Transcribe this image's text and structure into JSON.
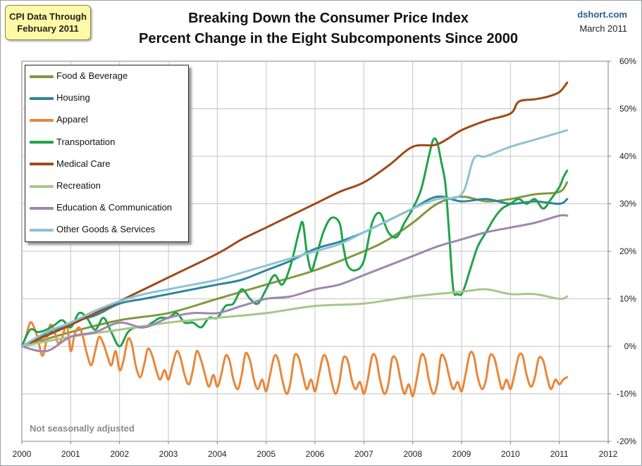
{
  "badge": {
    "line1": "CPI Data Through",
    "line2": "February 2011"
  },
  "header": {
    "title_line1": "Breaking Down the Consumer Price Index",
    "title_line2": "Percent Change in the Eight Subcomponents Since 2000"
  },
  "source": {
    "site": "dshort.com",
    "date": "March 2011"
  },
  "note": "Not seasonally adjusted",
  "chart_data": {
    "type": "line",
    "title": "Breaking Down the Consumer Price Index - Percent Change in the Eight Subcomponents Since 2000",
    "xlabel": "",
    "ylabel": "",
    "xlim": [
      2000,
      2012
    ],
    "ylim": [
      -20,
      60
    ],
    "x_ticks": [
      "2000",
      "2001",
      "2002",
      "2003",
      "2004",
      "2005",
      "2006",
      "2007",
      "2008",
      "2009",
      "2010",
      "2011",
      "2012"
    ],
    "y_ticks": [
      "60%",
      "50%",
      "40%",
      "30%",
      "20%",
      "10%",
      "0%",
      "-10%",
      "-20%"
    ],
    "y_axis_side": "right",
    "grid": true,
    "legend_position": "top-left",
    "series": [
      {
        "name": "Food & Beverage",
        "color": "#7f9a40",
        "x": [
          2000,
          2001,
          2002,
          2003,
          2004,
          2005,
          2006,
          2007,
          2007.5,
          2008,
          2008.5,
          2009,
          2009.5,
          2010,
          2010.5,
          2011,
          2011.16
        ],
        "y": [
          0,
          3,
          5.5,
          7,
          10,
          13,
          16,
          20,
          22.5,
          26,
          30,
          31.5,
          30.5,
          31,
          32,
          32.5,
          34.5
        ]
      },
      {
        "name": "Housing",
        "color": "#31849b",
        "x": [
          2000,
          2000.5,
          2001,
          2001.5,
          2002,
          2002.5,
          2003,
          2003.5,
          2004,
          2004.5,
          2005,
          2005.5,
          2006,
          2006.5,
          2007,
          2007.5,
          2008,
          2008.5,
          2009,
          2009.5,
          2010,
          2010.5,
          2011,
          2011.16
        ],
        "y": [
          0,
          2.5,
          5,
          6.5,
          9,
          10,
          11,
          12,
          13,
          14,
          16,
          18,
          20.5,
          22,
          24,
          26.5,
          29,
          31.5,
          30.5,
          31,
          30,
          30.5,
          30,
          31
        ]
      },
      {
        "name": "Apparel",
        "color": "#e8873a",
        "x": [
          2000,
          2000.08,
          2000.17,
          2000.25,
          2000.33,
          2000.42,
          2000.5,
          2000.58,
          2000.67,
          2000.75,
          2000.83,
          2000.92,
          2001,
          2001.08,
          2001.17,
          2001.25,
          2001.33,
          2001.42,
          2001.5,
          2001.58,
          2001.67,
          2001.75,
          2001.83,
          2001.92,
          2002,
          2002.08,
          2002.17,
          2002.25,
          2002.33,
          2002.42,
          2002.5,
          2002.58,
          2002.67,
          2002.75,
          2002.83,
          2002.92,
          2003,
          2003.08,
          2003.17,
          2003.25,
          2003.33,
          2003.42,
          2003.5,
          2003.58,
          2003.67,
          2003.75,
          2003.83,
          2003.92,
          2004,
          2004.08,
          2004.17,
          2004.25,
          2004.33,
          2004.42,
          2004.5,
          2004.58,
          2004.67,
          2004.75,
          2004.83,
          2004.92,
          2005,
          2005.08,
          2005.17,
          2005.25,
          2005.33,
          2005.42,
          2005.5,
          2005.58,
          2005.67,
          2005.75,
          2005.83,
          2005.92,
          2006,
          2006.08,
          2006.17,
          2006.25,
          2006.33,
          2006.42,
          2006.5,
          2006.58,
          2006.67,
          2006.75,
          2006.83,
          2006.92,
          2007,
          2007.08,
          2007.17,
          2007.25,
          2007.33,
          2007.42,
          2007.5,
          2007.58,
          2007.67,
          2007.75,
          2007.83,
          2007.92,
          2008,
          2008.08,
          2008.17,
          2008.25,
          2008.33,
          2008.42,
          2008.5,
          2008.58,
          2008.67,
          2008.75,
          2008.83,
          2008.92,
          2009,
          2009.08,
          2009.17,
          2009.25,
          2009.33,
          2009.42,
          2009.5,
          2009.58,
          2009.67,
          2009.75,
          2009.83,
          2009.92,
          2010,
          2010.08,
          2010.17,
          2010.25,
          2010.33,
          2010.42,
          2010.5,
          2010.58,
          2010.67,
          2010.75,
          2010.83,
          2010.92,
          2011,
          2011.08,
          2011.16
        ],
        "y": [
          0,
          2,
          5,
          4,
          1.5,
          -2,
          1,
          4.5,
          3,
          0.5,
          2,
          4.5,
          -1,
          2.5,
          4,
          2,
          -1.5,
          -4,
          -1,
          2,
          0.5,
          -2,
          -4,
          -1,
          -5,
          -3,
          1.5,
          0.5,
          -4,
          -6.5,
          -4,
          -0.5,
          -2,
          -5,
          -7,
          -5,
          -7,
          -4,
          -1,
          -2.5,
          -6,
          -8,
          -5,
          -1,
          -3,
          -6,
          -8.5,
          -6,
          -8.5,
          -6,
          -2,
          -3,
          -7,
          -9,
          -6,
          -1.5,
          -3,
          -7,
          -9,
          -7,
          -9.5,
          -6,
          -2,
          -3,
          -7,
          -10,
          -7.5,
          -2,
          -2.5,
          -6,
          -9,
          -7,
          -9.5,
          -6,
          -2,
          -3,
          -7,
          -10,
          -7.5,
          -2.5,
          -3,
          -7,
          -9,
          -7.5,
          -10,
          -7,
          -2,
          -2.5,
          -7,
          -10,
          -8,
          -2.5,
          -3,
          -7,
          -10,
          -8,
          -10.5,
          -7,
          -2,
          -2.5,
          -7,
          -10,
          -8,
          -2,
          -3,
          -6.5,
          -9,
          -7.5,
          -9.5,
          -6,
          -1.5,
          -2,
          -6.5,
          -9,
          -7,
          -2,
          -2.5,
          -6,
          -9,
          -7,
          -9,
          -6,
          -2,
          -2,
          -6,
          -8.5,
          -6.5,
          -2.5,
          -3,
          -6.5,
          -9,
          -7,
          -8,
          -7,
          -6.5
        ]
      },
      {
        "name": "Transportation",
        "color": "#1fa34a",
        "x": [
          2000,
          2000.17,
          2000.33,
          2000.5,
          2000.67,
          2000.83,
          2001,
          2001.17,
          2001.33,
          2001.5,
          2001.67,
          2001.83,
          2002,
          2002.17,
          2002.33,
          2002.5,
          2002.67,
          2002.83,
          2003,
          2003.17,
          2003.33,
          2003.5,
          2003.67,
          2003.83,
          2004,
          2004.17,
          2004.33,
          2004.5,
          2004.67,
          2004.83,
          2005,
          2005.17,
          2005.33,
          2005.5,
          2005.67,
          2005.75,
          2005.83,
          2005.92,
          2006,
          2006.17,
          2006.33,
          2006.5,
          2006.58,
          2006.67,
          2006.83,
          2007,
          2007.17,
          2007.33,
          2007.5,
          2007.67,
          2007.83,
          2008,
          2008.17,
          2008.33,
          2008.42,
          2008.5,
          2008.58,
          2008.67,
          2008.75,
          2008.83,
          2008.92,
          2009,
          2009.08,
          2009.17,
          2009.33,
          2009.5,
          2009.67,
          2009.83,
          2010,
          2010.17,
          2010.33,
          2010.5,
          2010.67,
          2010.83,
          2011,
          2011.08,
          2011.16
        ],
        "y": [
          0,
          3.5,
          3,
          3.5,
          4.5,
          5.5,
          4,
          7,
          6,
          3.5,
          6,
          3,
          0,
          3,
          4,
          4,
          5,
          6,
          6,
          7,
          5,
          5,
          4,
          6,
          6,
          8.5,
          9,
          12,
          10,
          9,
          12,
          15,
          13,
          17,
          24,
          26,
          20,
          16,
          18,
          24,
          27,
          26,
          21,
          17,
          16,
          18,
          26,
          28,
          24,
          23,
          26,
          29,
          33,
          40,
          43.5,
          43,
          39,
          34,
          23,
          12,
          11,
          11,
          13,
          16,
          21,
          24,
          27,
          29,
          30,
          31,
          30,
          31,
          29,
          31,
          33.5,
          35.5,
          37
        ]
      },
      {
        "name": "Medical Care",
        "color": "#a04a16",
        "x": [
          2000,
          2001,
          2002,
          2003,
          2004,
          2004.5,
          2005,
          2005.5,
          2006,
          2006.5,
          2007,
          2007.5,
          2008,
          2008.5,
          2009,
          2009.5,
          2010,
          2010.17,
          2010.5,
          2010.75,
          2011,
          2011.16
        ],
        "y": [
          0,
          4.5,
          9.5,
          14.5,
          19.5,
          22.5,
          25,
          27.5,
          30,
          32.5,
          34.5,
          38,
          42,
          42.5,
          45.5,
          47.5,
          49,
          51.5,
          52,
          52.5,
          53.5,
          55.5
        ]
      },
      {
        "name": "Recreation",
        "color": "#a8c68a",
        "x": [
          2000,
          2001,
          2002,
          2003,
          2004,
          2005,
          2006,
          2007,
          2008,
          2009,
          2009.5,
          2010,
          2010.5,
          2011,
          2011.16
        ],
        "y": [
          0,
          2,
          3.5,
          5,
          6,
          7,
          8.5,
          9,
          10.5,
          11.5,
          12,
          11,
          11,
          10,
          10.5
        ]
      },
      {
        "name": "Education & Communication",
        "color": "#9e86b2",
        "x": [
          2000,
          2000.5,
          2001,
          2001.5,
          2002,
          2002.5,
          2003,
          2003.5,
          2004,
          2004.5,
          2005,
          2005.5,
          2006,
          2006.5,
          2007,
          2007.5,
          2008,
          2008.5,
          2009,
          2009.5,
          2010,
          2010.5,
          2011,
          2011.16
        ],
        "y": [
          0,
          -1,
          2,
          3,
          5,
          4,
          6,
          7,
          7,
          8.5,
          10,
          10.5,
          12,
          13,
          15,
          17,
          19,
          21,
          22.5,
          24,
          25,
          26,
          27.5,
          27.5
        ]
      },
      {
        "name": "Other Goods & Services",
        "color": "#8cc3d6",
        "x": [
          2000,
          2000.5,
          2001,
          2001.5,
          2002,
          2002.5,
          2003,
          2003.5,
          2004,
          2004.5,
          2005,
          2005.5,
          2006,
          2006.5,
          2007,
          2007.5,
          2008,
          2008.5,
          2009,
          2009.25,
          2009.5,
          2010,
          2010.5,
          2011,
          2011.16
        ],
        "y": [
          0,
          3,
          5,
          7.5,
          9.5,
          11,
          12,
          13,
          14,
          15.5,
          17,
          18.5,
          20,
          21.5,
          24,
          26.5,
          29,
          31,
          32,
          39.5,
          40,
          42,
          43.5,
          45,
          45.5
        ]
      }
    ]
  }
}
